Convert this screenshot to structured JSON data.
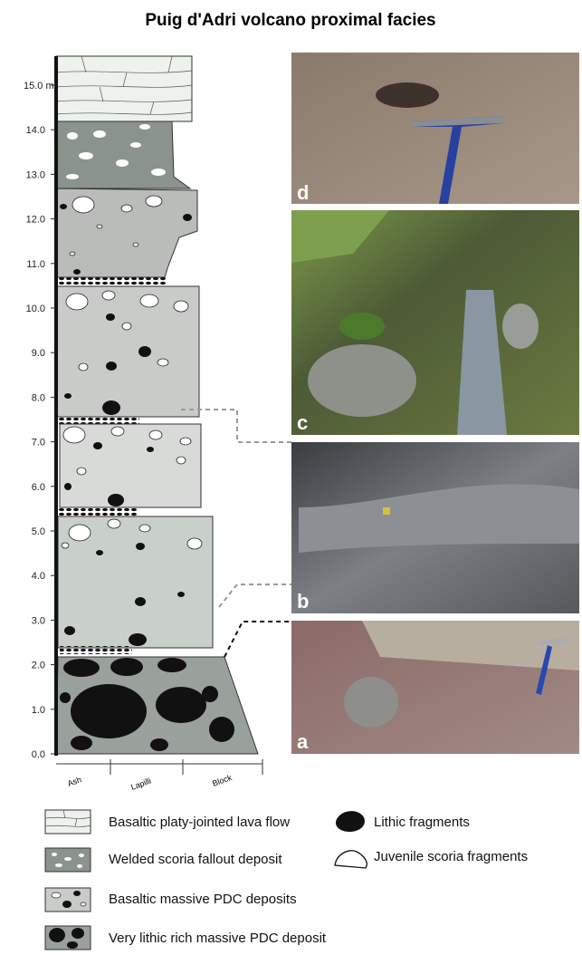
{
  "title": "Puig d'Adri  volcano proximal facies",
  "depth_axis": {
    "labels": [
      "0.0",
      "1.0",
      "2.0",
      "3.0",
      "4.0",
      "5.0",
      "6.0",
      "7.0",
      "8.0",
      "9.0",
      "10.0",
      "11.0",
      "12.0",
      "13.0",
      "14.0",
      "15.0 m"
    ]
  },
  "grain_axis": {
    "labels": [
      "Ash",
      "Lapilli",
      "Block"
    ]
  },
  "photos": [
    {
      "label": "d"
    },
    {
      "label": "c"
    },
    {
      "label": "b"
    },
    {
      "label": "a"
    }
  ],
  "legend": {
    "items": [
      "Basaltic platy-jointed lava flow",
      "Welded scoria fallout deposit",
      "Basaltic massive PDC deposits",
      "Very lithic rich massive PDC deposit",
      "Lithic fragments",
      "Juvenile scoria fragments"
    ]
  }
}
